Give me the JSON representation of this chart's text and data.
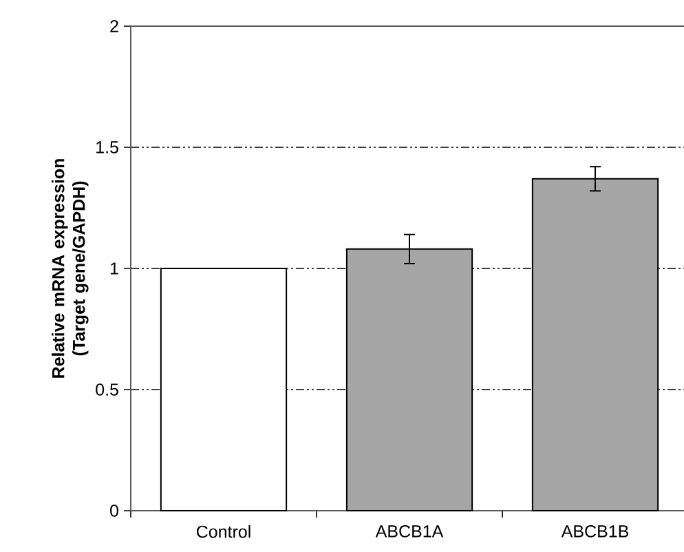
{
  "chart_data": {
    "type": "bar",
    "ylabel": "Relative mRNA expression (Target gene/GAPDH)",
    "categories": [
      "Control",
      "ABCB1A",
      "ABCB1B"
    ],
    "values": [
      1,
      1.08,
      1.37
    ],
    "errors": [
      null,
      0.06,
      0.05
    ],
    "colors": [
      "#ffffff",
      "#a6a6a6",
      "#a6a6a6"
    ],
    "ylim": [
      0,
      2
    ],
    "yticks": [
      0,
      0.5,
      1,
      1.5,
      2
    ],
    "grid": "y"
  }
}
